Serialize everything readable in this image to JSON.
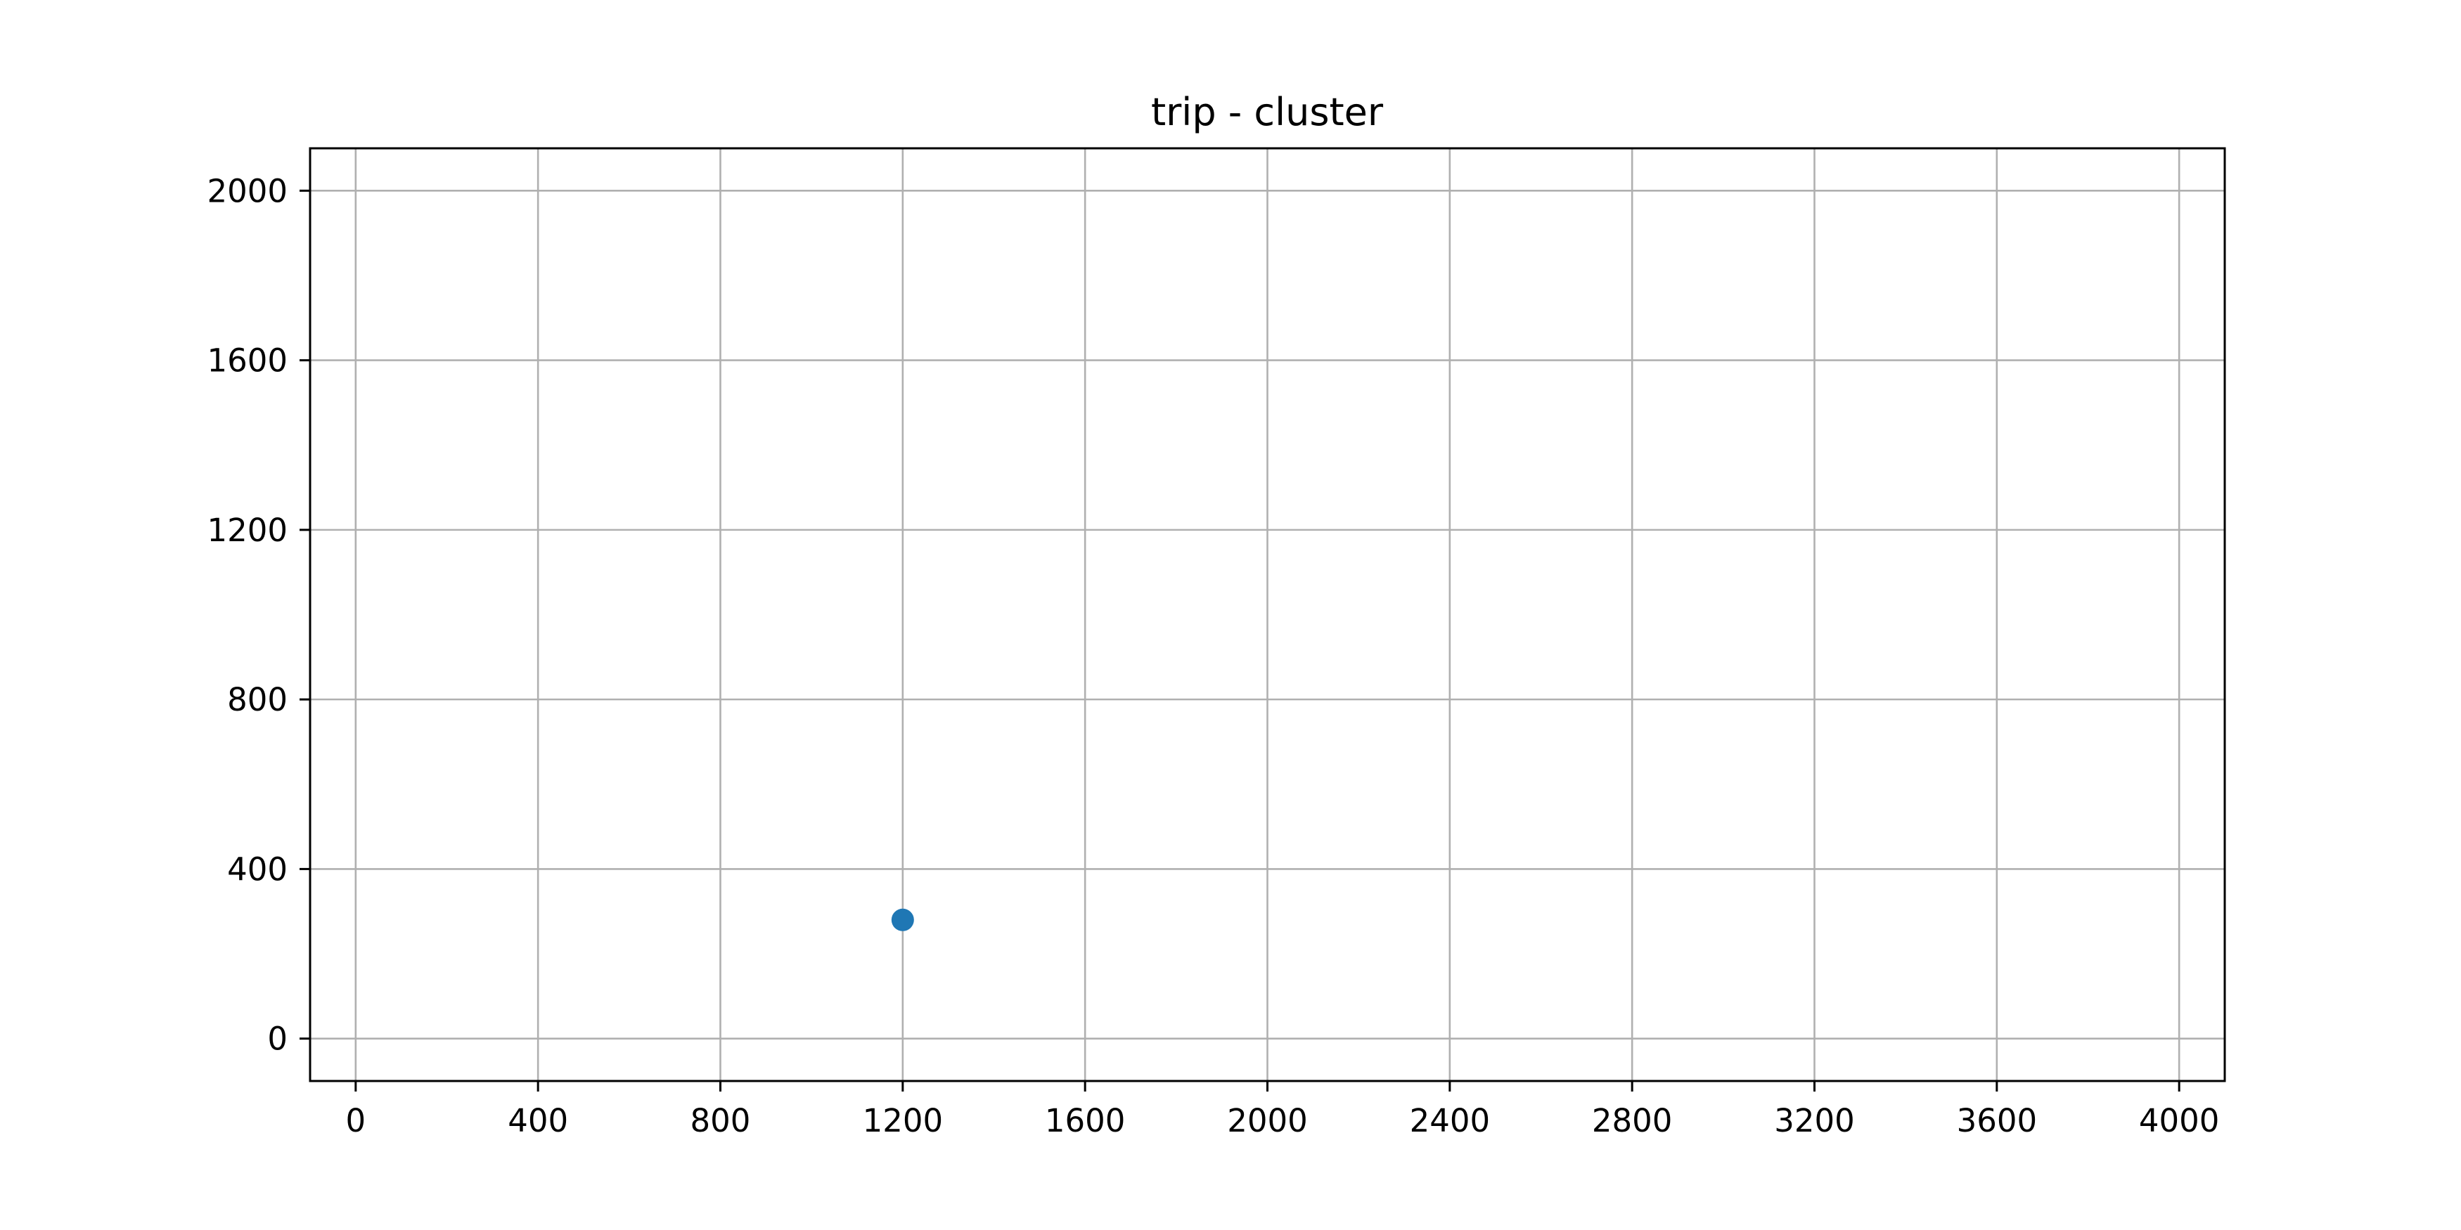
{
  "chart_data": {
    "type": "scatter",
    "title": "trip - cluster",
    "xlabel": "",
    "ylabel": "",
    "xlim": [
      -100,
      4100
    ],
    "ylim": [
      -100,
      2100
    ],
    "x_ticks": [
      0,
      400,
      800,
      1200,
      1600,
      2000,
      2400,
      2800,
      3200,
      3600,
      4000
    ],
    "y_ticks": [
      0,
      400,
      800,
      1200,
      1600,
      2000
    ],
    "grid": true,
    "colors": {
      "point": "#1f77b4",
      "grid": "#b0b0b0",
      "axes": "#000000"
    },
    "series": [
      {
        "points": [
          {
            "x": 1200,
            "y": 280
          }
        ]
      }
    ]
  }
}
